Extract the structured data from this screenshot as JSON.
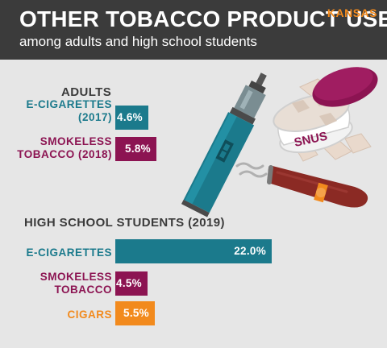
{
  "header": {
    "title": "OTHER TOBACCO PRODUCT USE",
    "subtitle": "among adults and high school students",
    "state": "KANSAS"
  },
  "colors": {
    "teal": "#1b7a8c",
    "maroon": "#8c1452",
    "orange": "#f28a1d",
    "header_bg": "#3b3b3b",
    "background": "#e6e6e6"
  },
  "illustration": {
    "items": [
      "e-cigarette",
      "snus tin",
      "cigar"
    ],
    "snus_label": "SNUS"
  },
  "chart_data": [
    {
      "type": "bar",
      "orientation": "horizontal",
      "title": "ADULTS",
      "categories": [
        [
          "E-CIGARETTES",
          "(2017)"
        ],
        [
          "SMOKELESS",
          "TOBACCO (2018)"
        ]
      ],
      "values": [
        4.6,
        5.8
      ],
      "value_labels": [
        "4.6%",
        "5.8%"
      ],
      "unit": "%",
      "bar_colors": [
        "#1b7a8c",
        "#8c1452"
      ]
    },
    {
      "type": "bar",
      "orientation": "horizontal",
      "title": "HIGH SCHOOL STUDENTS (2019)",
      "categories": [
        [
          "E-CIGARETTES"
        ],
        [
          "SMOKELESS",
          "TOBACCO"
        ],
        [
          "CIGARS"
        ]
      ],
      "values": [
        22.0,
        4.5,
        5.5
      ],
      "value_labels": [
        "22.0%",
        "4.5%",
        "5.5%"
      ],
      "unit": "%",
      "bar_colors": [
        "#1b7a8c",
        "#8c1452",
        "#f28a1d"
      ]
    }
  ]
}
